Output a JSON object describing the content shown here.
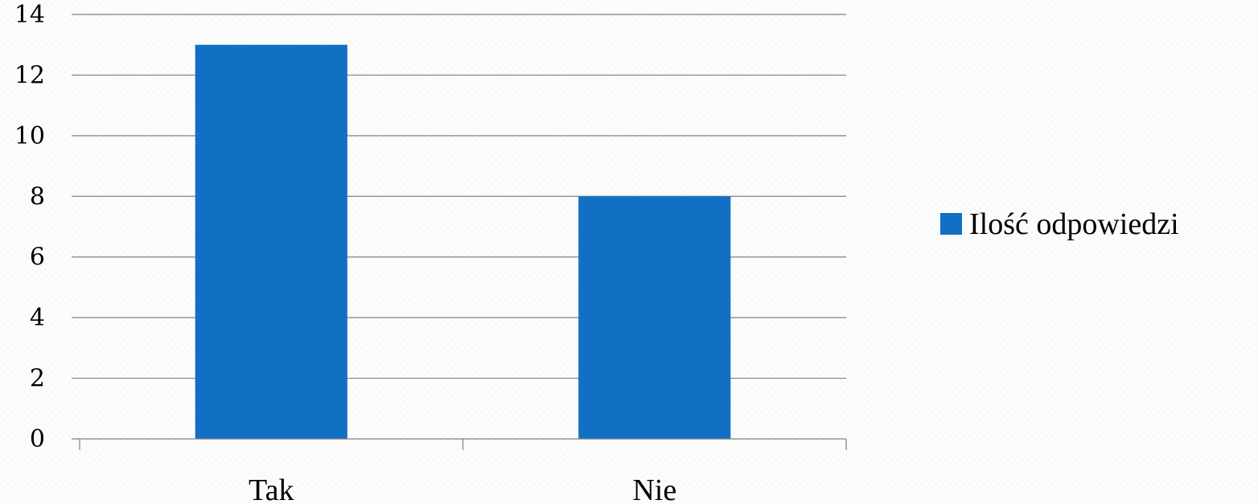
{
  "chart_data": {
    "type": "bar",
    "categories": [
      "Tak",
      "Nie"
    ],
    "series": [
      {
        "name": "Ilość odpowiedzi",
        "values": [
          13,
          8
        ]
      }
    ],
    "title": "",
    "xlabel": "",
    "ylabel": "",
    "ylim": [
      0,
      14
    ],
    "yticks": [
      0,
      2,
      4,
      6,
      8,
      10,
      12,
      14
    ],
    "ytick_labels": [
      "0",
      "2",
      "4",
      "6",
      "8",
      "10",
      "12",
      "14"
    ],
    "grid": "horizontal",
    "legend_position": "right",
    "colors": {
      "bar": "#1170c4",
      "grid": "#808080",
      "text": "#000000"
    }
  }
}
